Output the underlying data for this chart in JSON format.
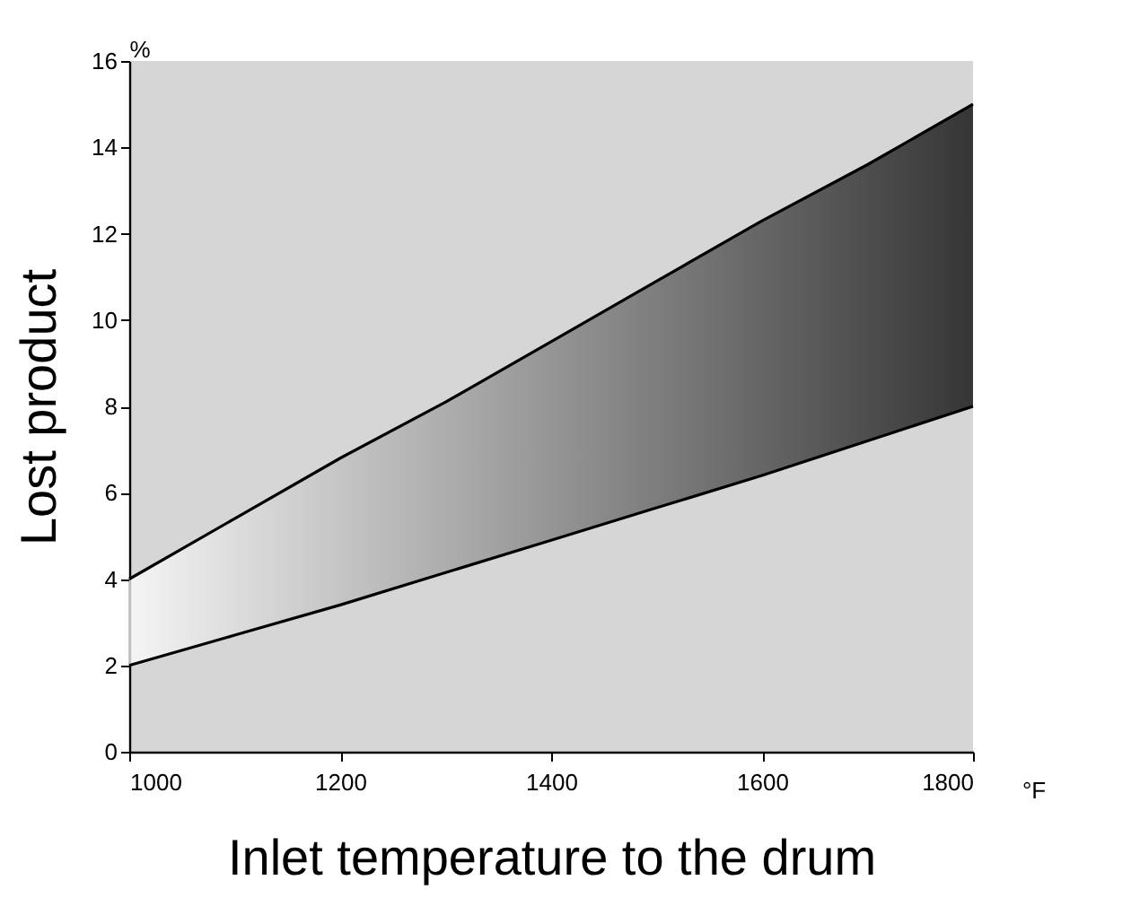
{
  "chart_data": {
    "type": "line",
    "xlabel": "Inlet temperature to the drum",
    "ylabel": "Lost product",
    "annotations": [
      "%",
      "°F"
    ],
    "x": [
      1000,
      1100,
      1200,
      1300,
      1400,
      1500,
      1600,
      1700,
      1800
    ],
    "series": [
      {
        "color": "#000000",
        "values": [
          4,
          5.4,
          6.8,
          8.1,
          9.5,
          10.9,
          12.3,
          13.6,
          15
        ],
        "lower": [
          2,
          2.7,
          3.4,
          4.15,
          4.9,
          5.65,
          6.4,
          7.2,
          8
        ],
        "upper": [
          4,
          5.4,
          6.8,
          8.1,
          9.5,
          10.9,
          12.3,
          13.6,
          15
        ]
      },
      {
        "color": "#000000",
        "values": [
          2,
          2.7,
          3.4,
          4.15,
          4.9,
          5.65,
          6.4,
          7.2,
          8
        ]
      }
    ],
    "xlim": [
      1000,
      1800
    ],
    "xticks": [
      1000,
      1200,
      1400,
      1600,
      1800
    ],
    "ylim": [
      0,
      16
    ],
    "yticks": [
      0,
      2,
      4,
      6,
      8,
      10,
      12,
      14,
      16
    ],
    "grid": false
  }
}
